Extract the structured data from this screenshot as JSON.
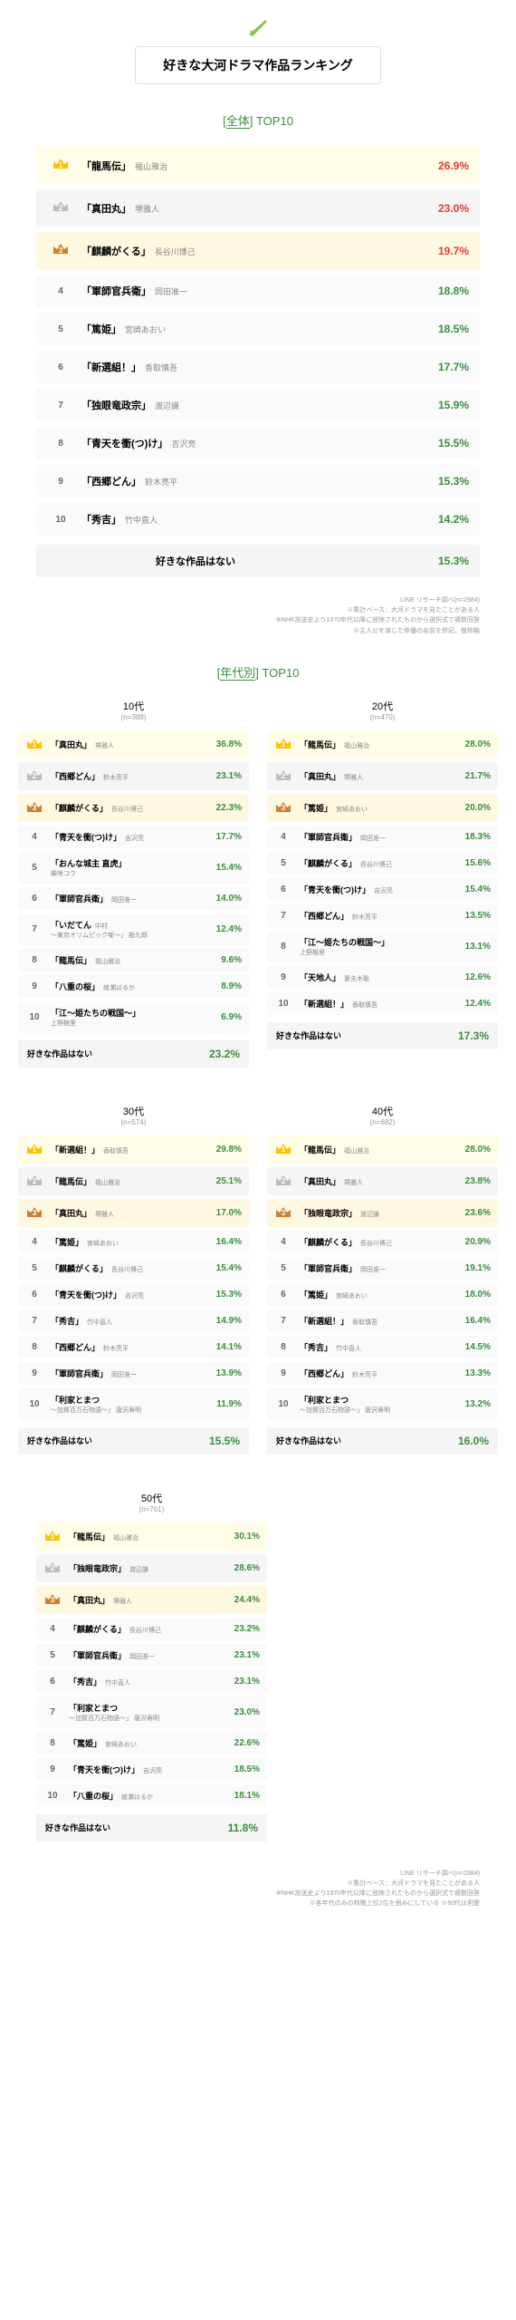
{
  "header": {
    "title": "好きな大河ドラマ作品ランキング"
  },
  "overall": {
    "section_label": "全体",
    "section_suffix": "TOP10",
    "items": [
      {
        "rank": 1,
        "name": "「龍馬伝」",
        "actor": "福山雅治",
        "pct": "26.9%",
        "cls": "red"
      },
      {
        "rank": 2,
        "name": "「真田丸」",
        "actor": "堺雅人",
        "pct": "23.0%",
        "cls": "red"
      },
      {
        "rank": 3,
        "name": "「麒麟がくる」",
        "actor": "長谷川博己",
        "pct": "19.7%",
        "cls": "red"
      },
      {
        "rank": 4,
        "name": "「軍師官兵衛」",
        "actor": "岡田准一",
        "pct": "18.8%",
        "cls": "green"
      },
      {
        "rank": 5,
        "name": "「篤姫」",
        "actor": "宮崎あおい",
        "pct": "18.5%",
        "cls": "green"
      },
      {
        "rank": 6,
        "name": "「新選組！」",
        "actor": "香取慎吾",
        "pct": "17.7%",
        "cls": "green"
      },
      {
        "rank": 7,
        "name": "「独眼竜政宗」",
        "actor": "渡辺謙",
        "pct": "15.9%",
        "cls": "green"
      },
      {
        "rank": 8,
        "name": "「青天を衝(つ)け」",
        "actor": "吉沢亮",
        "pct": "15.5%",
        "cls": "green"
      },
      {
        "rank": 9,
        "name": "「西郷どん」",
        "actor": "鈴木亮平",
        "pct": "15.3%",
        "cls": "green"
      },
      {
        "rank": 10,
        "name": "「秀吉」",
        "actor": "竹中直人",
        "pct": "14.2%",
        "cls": "green"
      }
    ],
    "none_label": "好きな作品はない",
    "none_pct": "15.3%"
  },
  "footnote1": [
    "LINE リサーチ調べ(n=2984)",
    "※集計ベース：大河ドラマを見たことがある人",
    "※NHK放送史より1970年代以降に放映されたものから選択式で複数回答",
    "※主人公を演じた俳優の名前を併記、敬称略"
  ],
  "age_section": {
    "label": "年代別",
    "suffix": "TOP10"
  },
  "ages": [
    {
      "label": "10代",
      "n": "(n=388)",
      "items": [
        {
          "rank": 1,
          "name": "「真田丸」",
          "actor": "堺雅人",
          "pct": "36.8%",
          "hl": true
        },
        {
          "rank": 2,
          "name": "「西郷どん」",
          "actor": "鈴木亮平",
          "pct": "23.1%",
          "hl": true
        },
        {
          "rank": 3,
          "name": "「麒麟がくる」",
          "actor": "長谷川博己",
          "pct": "22.3%"
        },
        {
          "rank": 4,
          "name": "「青天を衝(つ)け」",
          "actor": "吉沢亮",
          "pct": "17.7%"
        },
        {
          "rank": 5,
          "name": "「おんな城主 直虎」",
          "actor": "",
          "sub": "柴咲コウ",
          "pct": "15.4%",
          "hl": true
        },
        {
          "rank": 6,
          "name": "「軍師官兵衛」",
          "actor": "岡田准一",
          "pct": "14.0%"
        },
        {
          "rank": 7,
          "name": "「いだてん",
          "actor": "中村",
          "sub": "〜東京オリムピック噺〜」 勘九郎",
          "pct": "12.4%",
          "hl": true
        },
        {
          "rank": 8,
          "name": "「龍馬伝」",
          "actor": "福山雅治",
          "pct": "9.6%"
        },
        {
          "rank": 9,
          "name": "「八重の桜」",
          "actor": "綾瀬はるか",
          "pct": "8.9%",
          "hl": true
        },
        {
          "rank": 10,
          "name": "「江〜姫たちの戦国〜」",
          "actor": "",
          "sub": "上野樹里",
          "pct": "6.9%"
        }
      ],
      "none_label": "好きな作品はない",
      "none_pct": "23.2%"
    },
    {
      "label": "20代",
      "n": "(n=470)",
      "items": [
        {
          "rank": 1,
          "name": "「龍馬伝」",
          "actor": "福山雅治",
          "pct": "28.0%"
        },
        {
          "rank": 2,
          "name": "「真田丸」",
          "actor": "堺雅人",
          "pct": "21.7%"
        },
        {
          "rank": 3,
          "name": "「篤姫」",
          "actor": "宮崎あおい",
          "pct": "20.0%"
        },
        {
          "rank": 4,
          "name": "「軍師官兵衛」",
          "actor": "岡田准一",
          "pct": "18.3%"
        },
        {
          "rank": 5,
          "name": "「麒麟がくる」",
          "actor": "長谷川博己",
          "pct": "15.6%"
        },
        {
          "rank": 6,
          "name": "「青天を衝(つ)け」",
          "actor": "吉沢亮",
          "pct": "15.4%"
        },
        {
          "rank": 7,
          "name": "「西郷どん」",
          "actor": "鈴木亮平",
          "pct": "13.5%"
        },
        {
          "rank": 8,
          "name": "「江〜姫たちの戦国〜」",
          "actor": "",
          "sub": "上野樹里",
          "pct": "13.1%",
          "hl": true
        },
        {
          "rank": 9,
          "name": "「天地人」",
          "actor": "妻夫木聡",
          "pct": "12.6%",
          "hl": true
        },
        {
          "rank": 10,
          "name": "「新選組！」",
          "actor": "香取慎吾",
          "pct": "12.4%"
        }
      ],
      "none_label": "好きな作品はない",
      "none_pct": "17.3%"
    },
    {
      "label": "30代",
      "n": "(n=574)",
      "items": [
        {
          "rank": 1,
          "name": "「新選組！」",
          "actor": "香取慎吾",
          "pct": "29.8%",
          "hl": true
        },
        {
          "rank": 2,
          "name": "「龍馬伝」",
          "actor": "福山雅治",
          "pct": "25.1%"
        },
        {
          "rank": 3,
          "name": "「真田丸」",
          "actor": "堺雅人",
          "pct": "17.0%"
        },
        {
          "rank": 4,
          "name": "「篤姫」",
          "actor": "宮崎あおい",
          "pct": "16.4%"
        },
        {
          "rank": 5,
          "name": "「麒麟がくる」",
          "actor": "長谷川博己",
          "pct": "15.4%"
        },
        {
          "rank": 6,
          "name": "「青天を衝(つ)け」",
          "actor": "吉沢亮",
          "pct": "15.3%"
        },
        {
          "rank": 7,
          "name": "「秀吉」",
          "actor": "竹中直人",
          "pct": "14.9%"
        },
        {
          "rank": 8,
          "name": "「西郷どん」",
          "actor": "鈴木亮平",
          "pct": "14.1%"
        },
        {
          "rank": 9,
          "name": "「軍師官兵衛」",
          "actor": "岡田准一",
          "pct": "13.9%"
        },
        {
          "rank": 10,
          "name": "「利家とまつ",
          "actor": "",
          "sub": "〜加賀百万石物語〜」 唐沢寿明",
          "pct": "11.9%",
          "hl": true
        }
      ],
      "none_label": "好きな作品はない",
      "none_pct": "15.5%"
    },
    {
      "label": "40代",
      "n": "(n=682)",
      "items": [
        {
          "rank": 1,
          "name": "「龍馬伝」",
          "actor": "福山雅治",
          "pct": "28.0%"
        },
        {
          "rank": 2,
          "name": "「真田丸」",
          "actor": "堺雅人",
          "pct": "23.8%"
        },
        {
          "rank": 3,
          "name": "「独眼竜政宗」",
          "actor": "渡辺謙",
          "pct": "23.6%",
          "hl": true
        },
        {
          "rank": 4,
          "name": "「麒麟がくる」",
          "actor": "長谷川博己",
          "pct": "20.9%"
        },
        {
          "rank": 5,
          "name": "「軍師官兵衛」",
          "actor": "岡田准一",
          "pct": "19.1%"
        },
        {
          "rank": 6,
          "name": "「篤姫」",
          "actor": "宮崎あおい",
          "pct": "18.0%"
        },
        {
          "rank": 7,
          "name": "「新選組！」",
          "actor": "香取慎吾",
          "pct": "16.4%"
        },
        {
          "rank": 8,
          "name": "「秀吉」",
          "actor": "竹中直人",
          "pct": "14.5%"
        },
        {
          "rank": 9,
          "name": "「西郷どん」",
          "actor": "鈴木亮平",
          "pct": "13.3%"
        },
        {
          "rank": 10,
          "name": "「利家とまつ",
          "actor": "",
          "sub": "〜加賀百万石物語〜」 唐沢寿明",
          "pct": "13.2%"
        }
      ],
      "none_label": "好きな作品はない",
      "none_pct": "16.0%"
    },
    {
      "label": "50代",
      "n": "(n=761)",
      "items": [
        {
          "rank": 1,
          "name": "「龍馬伝」",
          "actor": "福山雅治",
          "pct": "30.1%"
        },
        {
          "rank": 2,
          "name": "「独眼竜政宗」",
          "actor": "渡辺謙",
          "pct": "28.6%",
          "hl": true
        },
        {
          "rank": 3,
          "name": "「真田丸」",
          "actor": "堺雅人",
          "pct": "24.4%"
        },
        {
          "rank": 4,
          "name": "「麒麟がくる」",
          "actor": "長谷川博己",
          "pct": "23.2%"
        },
        {
          "rank": 5,
          "name": "「軍師官兵衛」",
          "actor": "岡田准一",
          "pct": "23.1%"
        },
        {
          "rank": 6,
          "name": "「秀吉」",
          "actor": "竹中直人",
          "pct": "23.1%"
        },
        {
          "rank": 7,
          "name": "「利家とまつ",
          "actor": "",
          "sub": "〜加賀百万石物語〜」 唐沢寿明",
          "pct": "23.0%",
          "hl": true
        },
        {
          "rank": 8,
          "name": "「篤姫」",
          "actor": "宮崎あおい",
          "pct": "22.6%"
        },
        {
          "rank": 9,
          "name": "「青天を衝(つ)け」",
          "actor": "吉沢亮",
          "pct": "18.5%"
        },
        {
          "rank": 10,
          "name": "「八重の桜」",
          "actor": "綾瀬はるか",
          "pct": "18.1%"
        }
      ],
      "none_label": "好きな作品はない",
      "none_pct": "11.8%"
    }
  ],
  "footnote2": [
    "LINE リサーチ調べ(n=2984)",
    "※集計ベース：大河ドラマを見たことがある人",
    "※NHK放送史より1970年代以降に放映されたものから選択式で複数回答",
    "※各年代のみの特徴上位2位を囲みにしている ※60代は割愛"
  ]
}
